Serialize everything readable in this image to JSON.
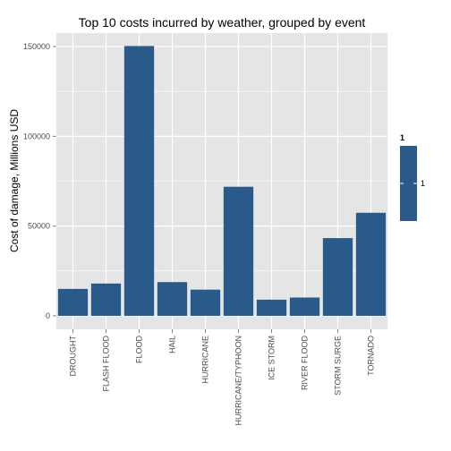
{
  "chart_data": {
    "type": "bar",
    "title": "Top 10 costs incurred by weather, grouped by event",
    "xlabel": "",
    "ylabel": "Cost of damage, Millions USD",
    "categories": [
      "DROUGHT",
      "FLASH FLOOD",
      "FLOOD",
      "HAIL",
      "HURRICANE",
      "HURRICANE/TYPHOON",
      "ICE STORM",
      "RIVER FLOOD",
      "STORM SURGE",
      "TORNADO"
    ],
    "values": [
      15000,
      18000,
      150300,
      18800,
      14600,
      71900,
      9000,
      10200,
      43300,
      57400
    ],
    "ylim": [
      -7500,
      157500
    ],
    "yticks": [
      0,
      50000,
      100000,
      150000
    ],
    "grid": true,
    "bar_color": "#2a5a8a",
    "panel_background": "#e5e5e5",
    "grid_color": "#ffffff",
    "legend": {
      "placement": "right",
      "title": "1",
      "labels": [
        "1"
      ]
    }
  }
}
